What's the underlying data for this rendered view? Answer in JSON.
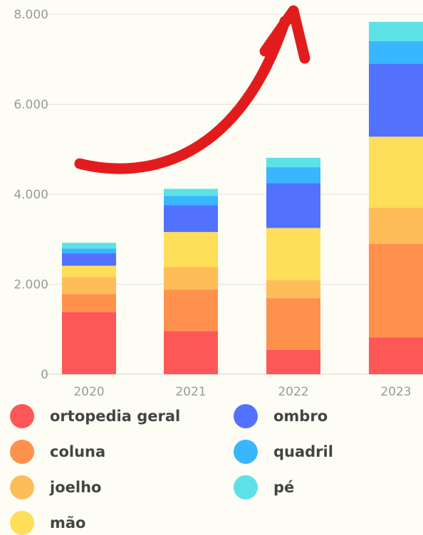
{
  "chart_data": {
    "type": "bar",
    "stacked": true,
    "categories": [
      "2020",
      "2021",
      "2022",
      "2023"
    ],
    "ylim": [
      0,
      8000
    ],
    "yticks": [
      0,
      2000,
      4000,
      6000,
      8000
    ],
    "ytick_labels": [
      "0",
      "2.000",
      "4.000",
      "6.000",
      "8.000"
    ],
    "grid": true,
    "legend_position": "bottom",
    "annotation": "red upward curved arrow",
    "series": [
      {
        "name": "ortopedia geral",
        "color": "#fe5757",
        "values": [
          1380,
          960,
          540,
          820
        ]
      },
      {
        "name": "coluna",
        "color": "#ff914d",
        "values": [
          400,
          920,
          1150,
          2080
        ]
      },
      {
        "name": "joelho",
        "color": "#ffbd59",
        "values": [
          380,
          500,
          400,
          800
        ]
      },
      {
        "name": "mão",
        "color": "#ffde59",
        "values": [
          250,
          780,
          1160,
          1580
        ]
      },
      {
        "name": "ombro",
        "color": "#5271ff",
        "values": [
          280,
          600,
          1000,
          1620
        ]
      },
      {
        "name": "quadril",
        "color": "#38b6ff",
        "values": [
          100,
          200,
          350,
          500
        ]
      },
      {
        "name": "pé",
        "color": "#5ce1e6",
        "values": [
          130,
          160,
          210,
          430
        ]
      }
    ]
  }
}
